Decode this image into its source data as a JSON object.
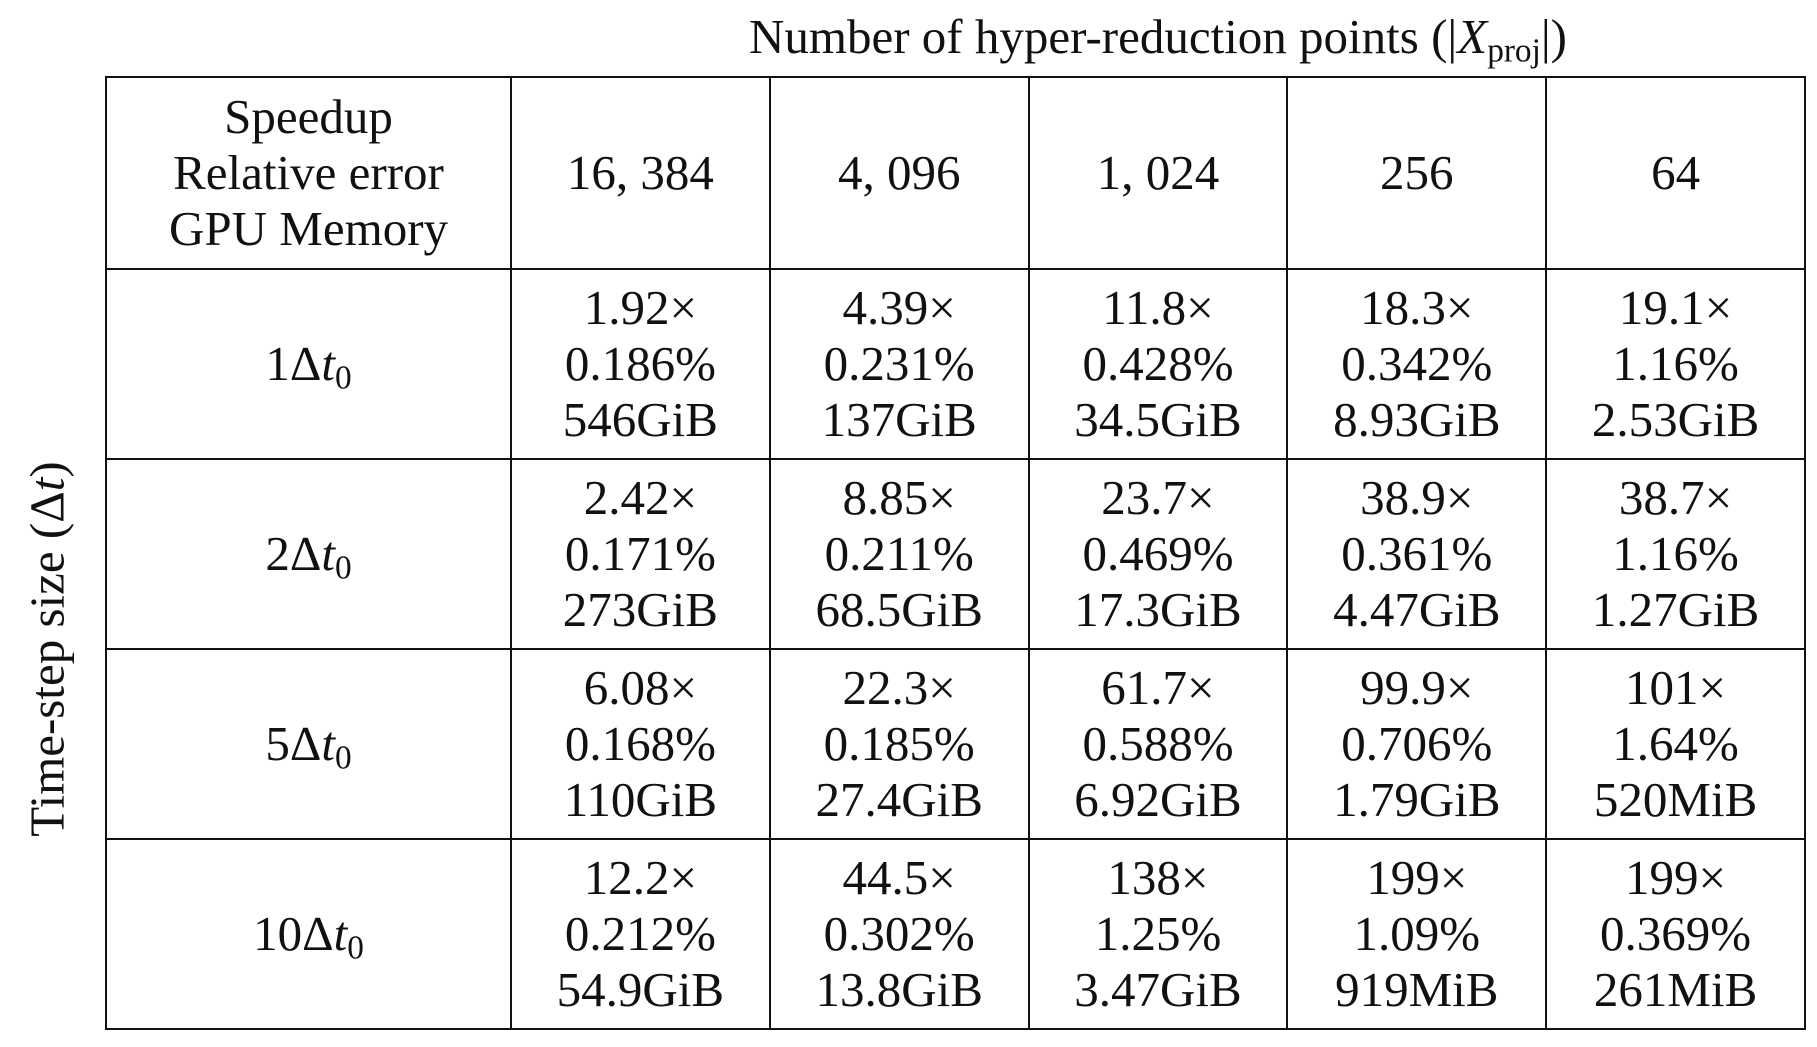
{
  "column_header": {
    "text": "Number of hyper-reduction points (|",
    "symbol": "X",
    "subscript": "proj",
    "close": "|)"
  },
  "row_header": {
    "text": "Time-step size (Δ",
    "symbol": "t",
    "close": ")"
  },
  "table": {
    "corner": [
      "Speedup",
      "Relative error",
      "GPU Memory"
    ],
    "columns": [
      "16, 384",
      "4, 096",
      "1, 024",
      "256",
      "64"
    ],
    "rows": [
      {
        "label": "1Δ",
        "symbol": "t",
        "subscript": "0",
        "cells": [
          [
            "1.92×",
            "0.186%",
            "546GiB"
          ],
          [
            "4.39×",
            "0.231%",
            "137GiB"
          ],
          [
            "11.8×",
            "0.428%",
            "34.5GiB"
          ],
          [
            "18.3×",
            "0.342%",
            "8.93GiB"
          ],
          [
            "19.1×",
            "1.16%",
            "2.53GiB"
          ]
        ]
      },
      {
        "label": "2Δ",
        "symbol": "t",
        "subscript": "0",
        "cells": [
          [
            "2.42×",
            "0.171%",
            "273GiB"
          ],
          [
            "8.85×",
            "0.211%",
            "68.5GiB"
          ],
          [
            "23.7×",
            "0.469%",
            "17.3GiB"
          ],
          [
            "38.9×",
            "0.361%",
            "4.47GiB"
          ],
          [
            "38.7×",
            "1.16%",
            "1.27GiB"
          ]
        ]
      },
      {
        "label": "5Δ",
        "symbol": "t",
        "subscript": "0",
        "cells": [
          [
            "6.08×",
            "0.168%",
            "110GiB"
          ],
          [
            "22.3×",
            "0.185%",
            "27.4GiB"
          ],
          [
            "61.7×",
            "0.588%",
            "6.92GiB"
          ],
          [
            "99.9×",
            "0.706%",
            "1.79GiB"
          ],
          [
            "101×",
            "1.64%",
            "520MiB"
          ]
        ]
      },
      {
        "label": "10Δ",
        "symbol": "t",
        "subscript": "0",
        "cells": [
          [
            "12.2×",
            "0.212%",
            "54.9GiB"
          ],
          [
            "44.5×",
            "0.302%",
            "13.8GiB"
          ],
          [
            "138×",
            "1.25%",
            "3.47GiB"
          ],
          [
            "199×",
            "1.09%",
            "919MiB"
          ],
          [
            "199×",
            "0.369%",
            "261MiB"
          ]
        ]
      }
    ]
  }
}
